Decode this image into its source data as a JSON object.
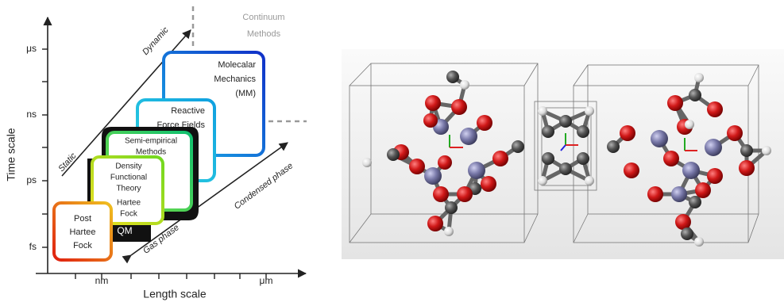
{
  "axes": {
    "y_label": "Time scale",
    "x_label": "Length scale",
    "y_ticks": [
      "μs",
      "ns",
      "ps",
      "fs"
    ],
    "x_ticks": [
      "nm",
      "μm"
    ]
  },
  "continuum": [
    "Continuum",
    "Methods"
  ],
  "boxes": {
    "mm": [
      "Molecalar",
      "Mechanics",
      "(MM)"
    ],
    "reactive": [
      "Reactive",
      "Force Fields"
    ],
    "semi": [
      "Semi-empirical",
      "Methods"
    ],
    "dft": [
      "Density",
      "Functional",
      "Theory"
    ],
    "hf": [
      "Hartee",
      "Fock"
    ],
    "post_hf": [
      "Post",
      "Hartee",
      "Fock"
    ],
    "qm": "QM"
  },
  "arrows": {
    "dynamic": "Dynamic",
    "static": "Static",
    "condensed": "Condensed phase",
    "gas": "Gas phase"
  }
}
